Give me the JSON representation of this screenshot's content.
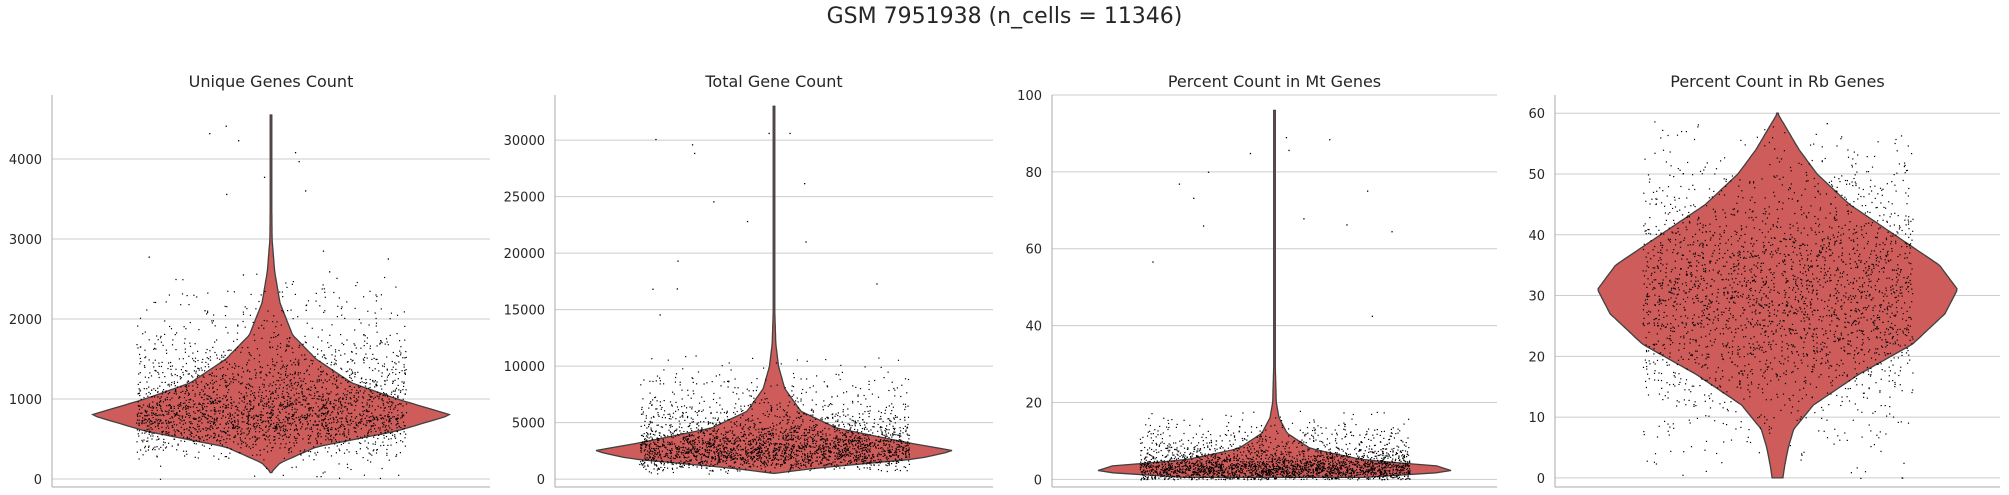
{
  "title": "GSM 7951938 (n_cells = 11346)",
  "colors": {
    "violin_fill": "#cd5c5a",
    "violin_edge": "#404040",
    "points": "#000000",
    "grid": "#cccccc",
    "axis": "#aaaaaa"
  },
  "chart_data": [
    {
      "type": "violin",
      "title": "Unique Genes Count",
      "yticks": [
        0,
        1000,
        2000,
        3000,
        4000
      ],
      "ylim": [
        -100,
        4800
      ],
      "grid": true,
      "n_points": 11346,
      "violin_range": [
        80,
        4550
      ],
      "density_profile": [
        [
          80,
          0.0
        ],
        [
          200,
          0.05
        ],
        [
          400,
          0.25
        ],
        [
          600,
          0.7
        ],
        [
          800,
          1.0
        ],
        [
          1000,
          0.7
        ],
        [
          1200,
          0.45
        ],
        [
          1500,
          0.25
        ],
        [
          1800,
          0.12
        ],
        [
          2200,
          0.05
        ],
        [
          2600,
          0.02
        ],
        [
          3000,
          0.006
        ],
        [
          3500,
          0.004
        ],
        [
          4550,
          0.002
        ]
      ],
      "points_spread_range": [
        0,
        2600
      ],
      "points_center": 800
    },
    {
      "type": "violin",
      "title": "Total Gene Count",
      "yticks": [
        0,
        5000,
        10000,
        15000,
        20000,
        25000,
        30000
      ],
      "ylim": [
        -700,
        34000
      ],
      "grid": true,
      "n_points": 11346,
      "violin_range": [
        500,
        33000
      ],
      "density_profile": [
        [
          500,
          0.0
        ],
        [
          1000,
          0.25
        ],
        [
          1800,
          0.8
        ],
        [
          2500,
          1.0
        ],
        [
          3200,
          0.75
        ],
        [
          4500,
          0.35
        ],
        [
          6000,
          0.15
        ],
        [
          8000,
          0.06
        ],
        [
          10000,
          0.025
        ],
        [
          12000,
          0.01
        ],
        [
          15000,
          0.004
        ],
        [
          20000,
          0.003
        ],
        [
          33000,
          0.002
        ]
      ],
      "points_spread_range": [
        500,
        11000
      ],
      "points_center": 2500
    },
    {
      "type": "violin",
      "title": "Percent Count in Mt Genes",
      "yticks": [
        0,
        20,
        40,
        60,
        80,
        100
      ],
      "ylim": [
        -2,
        100
      ],
      "grid": true,
      "n_points": 11346,
      "violin_range": [
        0.5,
        96
      ],
      "density_profile": [
        [
          0.5,
          0.5
        ],
        [
          2,
          1.0
        ],
        [
          3.5,
          0.9
        ],
        [
          5,
          0.5
        ],
        [
          8,
          0.2
        ],
        [
          12,
          0.07
        ],
        [
          16,
          0.025
        ],
        [
          20,
          0.01
        ],
        [
          30,
          0.004
        ],
        [
          50,
          0.003
        ],
        [
          96,
          0.002
        ]
      ],
      "points_spread_range": [
        0,
        18
      ],
      "points_center": 3
    },
    {
      "type": "violin",
      "title": "Percent Count in Rb Genes",
      "yticks": [
        0,
        10,
        20,
        30,
        40,
        50,
        60
      ],
      "ylim": [
        -1.5,
        63
      ],
      "grid": true,
      "n_points": 11346,
      "violin_range": [
        0,
        60
      ],
      "density_profile": [
        [
          0,
          0.03
        ],
        [
          2,
          0.04
        ],
        [
          5,
          0.06
        ],
        [
          8,
          0.09
        ],
        [
          12,
          0.2
        ],
        [
          17,
          0.45
        ],
        [
          22,
          0.75
        ],
        [
          27,
          0.93
        ],
        [
          31,
          1.0
        ],
        [
          35,
          0.9
        ],
        [
          40,
          0.65
        ],
        [
          45,
          0.4
        ],
        [
          50,
          0.22
        ],
        [
          54,
          0.12
        ],
        [
          57,
          0.06
        ],
        [
          60,
          0.0
        ]
      ],
      "points_spread_range": [
        0,
        60
      ],
      "points_center": 31
    }
  ]
}
